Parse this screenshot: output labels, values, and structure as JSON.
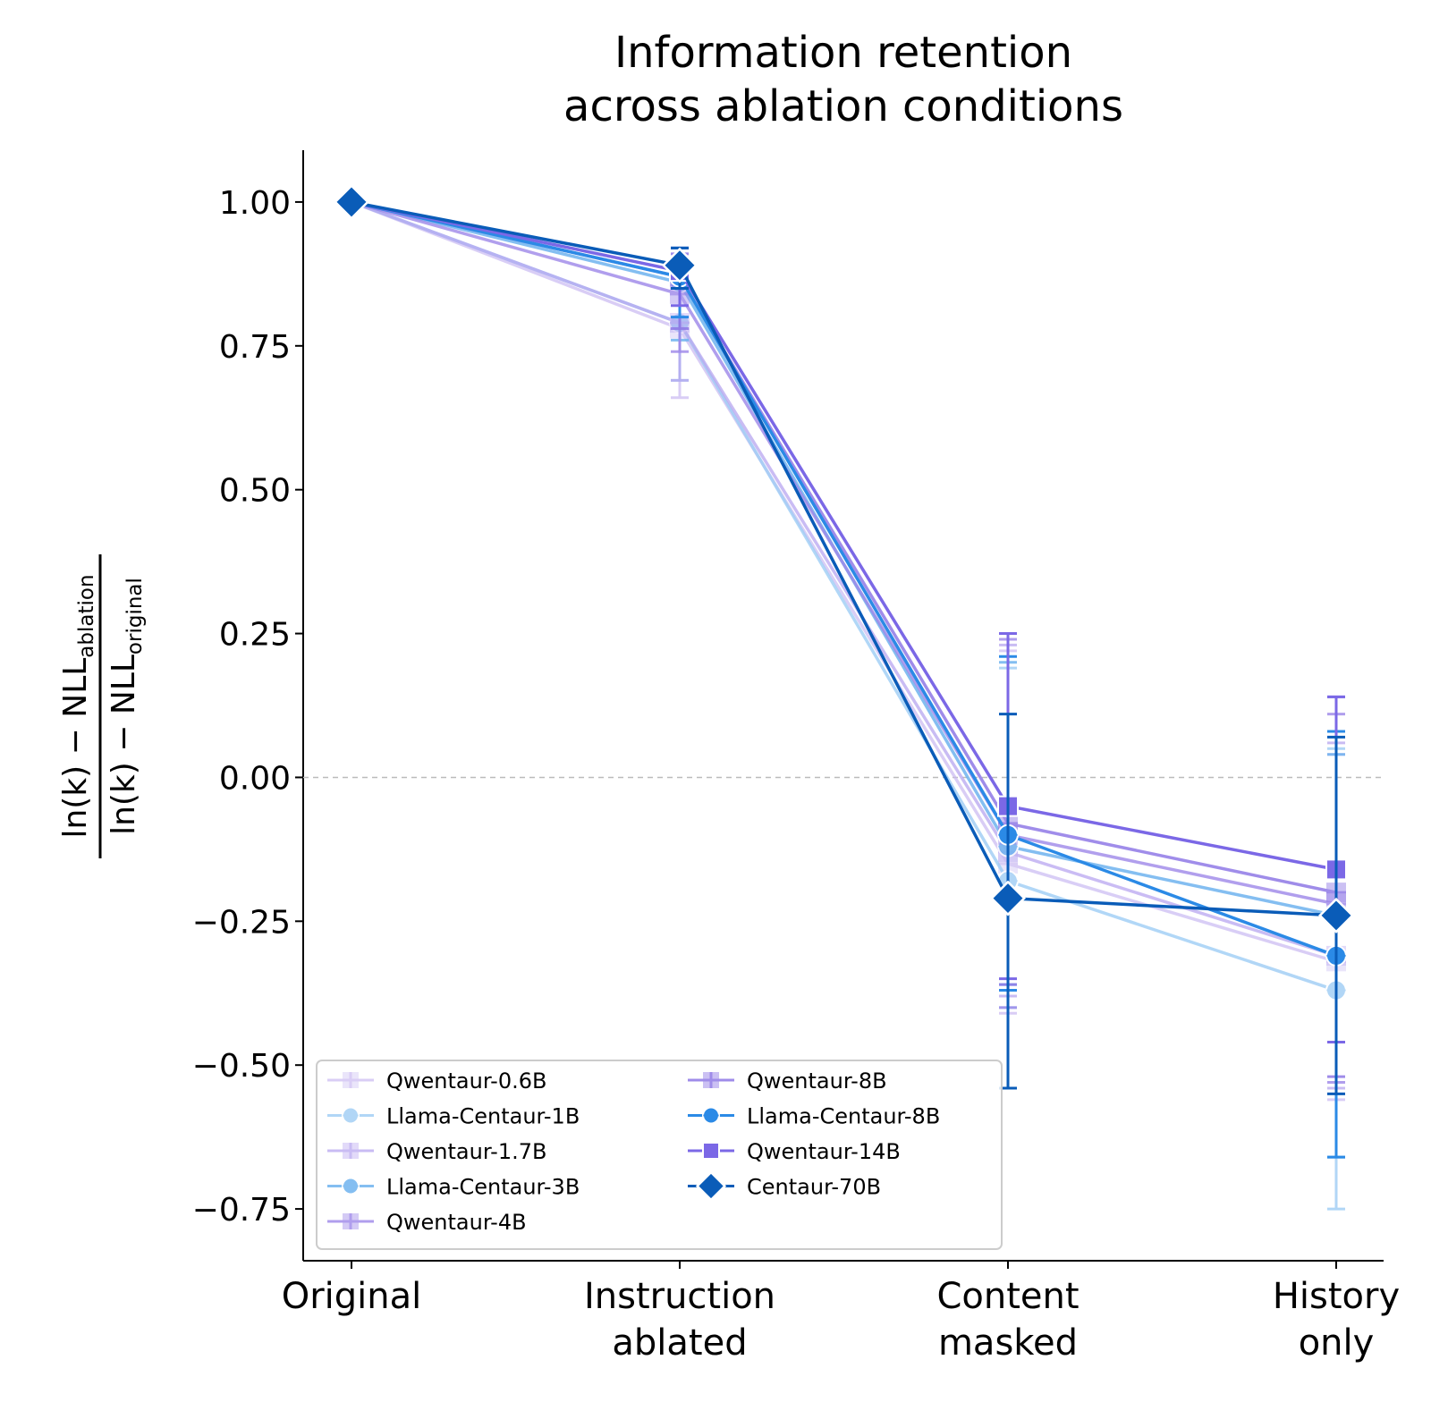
{
  "chart_data": {
    "type": "line",
    "title": [
      "Information retention",
      "across ablation conditions"
    ],
    "categories": [
      [
        "Original"
      ],
      [
        "Instruction",
        "ablated"
      ],
      [
        "Content",
        "masked"
      ],
      [
        "History",
        "only"
      ]
    ],
    "ylabel": {
      "numerator": {
        "text": "ln(k) − NLL",
        "sub": "ablation"
      },
      "denominator": {
        "text": "ln(k) − NLL",
        "sub": "original"
      }
    },
    "ylim": [
      -0.84,
      1.09
    ],
    "yticks": [
      1.0,
      0.75,
      0.5,
      0.25,
      0.0,
      -0.25,
      -0.5,
      -0.75
    ],
    "ytick_labels": [
      "1.00",
      "0.75",
      "0.50",
      "0.25",
      "0.00",
      "−0.25",
      "−0.50",
      "−0.75"
    ],
    "reference_line": {
      "y": 0.0,
      "style": "dashed",
      "color": "#bbbbbb"
    },
    "grid": false,
    "legend": {
      "placement": "lower-left",
      "columns": 2
    },
    "series": [
      {
        "name": "Qwentaur-0.6B",
        "color": "#c9b9f2",
        "marker": "plus",
        "alpha": 0.7,
        "values": [
          1.0,
          0.78,
          -0.15,
          -0.32
        ],
        "err_low": [
          0.0,
          0.66,
          -0.41,
          -0.56
        ],
        "err_high": [
          0.0,
          0.88,
          0.22,
          0.04
        ]
      },
      {
        "name": "Llama-Centaur-1B",
        "color": "#9ecdf5",
        "marker": "circle",
        "alpha": 0.8,
        "values": [
          1.0,
          0.79,
          -0.18,
          -0.37
        ],
        "err_low": [
          0.0,
          0.69,
          -0.4,
          -0.75
        ],
        "err_high": [
          0.0,
          0.89,
          0.19,
          0.05
        ]
      },
      {
        "name": "Qwentaur-1.7B",
        "color": "#b8a6f0",
        "marker": "plus",
        "alpha": 0.75,
        "values": [
          1.0,
          0.79,
          -0.13,
          -0.31
        ],
        "err_low": [
          0.0,
          0.69,
          -0.38,
          -0.54
        ],
        "err_high": [
          0.0,
          0.89,
          0.23,
          0.06
        ]
      },
      {
        "name": "Llama-Centaur-3B",
        "color": "#6fb3ef",
        "marker": "circle",
        "alpha": 0.85,
        "values": [
          1.0,
          0.86,
          -0.12,
          -0.24
        ],
        "err_low": [
          0.0,
          0.76,
          -0.36,
          -0.66
        ],
        "err_high": [
          0.0,
          0.9,
          0.2,
          0.04
        ]
      },
      {
        "name": "Qwentaur-4B",
        "color": "#9d87e9",
        "marker": "plus",
        "alpha": 0.8,
        "values": [
          1.0,
          0.84,
          -0.1,
          -0.22
        ],
        "err_low": [
          0.0,
          0.74,
          -0.4,
          -0.53
        ],
        "err_high": [
          0.0,
          0.9,
          0.24,
          0.11
        ]
      },
      {
        "name": "Qwentaur-8B",
        "color": "#8f79e6",
        "marker": "plus",
        "alpha": 0.85,
        "values": [
          1.0,
          0.87,
          -0.08,
          -0.2
        ],
        "err_low": [
          0.0,
          0.78,
          -0.36,
          -0.52
        ],
        "err_high": [
          0.0,
          0.91,
          0.25,
          0.14
        ]
      },
      {
        "name": "Llama-Centaur-8B",
        "color": "#2b8ae6",
        "marker": "circle",
        "alpha": 1.0,
        "values": [
          1.0,
          0.87,
          -0.1,
          -0.31
        ],
        "err_low": [
          0.0,
          0.8,
          -0.37,
          -0.66
        ],
        "err_high": [
          0.0,
          0.92,
          0.21,
          0.08
        ]
      },
      {
        "name": "Qwentaur-14B",
        "color": "#7b68e6",
        "marker": "square",
        "alpha": 1.0,
        "values": [
          1.0,
          0.88,
          -0.05,
          -0.16
        ],
        "err_low": [
          0.0,
          0.82,
          -0.35,
          -0.46
        ],
        "err_high": [
          0.0,
          0.92,
          0.25,
          0.14
        ]
      },
      {
        "name": "Centaur-70B",
        "color": "#0a5cb8",
        "marker": "diamond",
        "alpha": 1.0,
        "values": [
          1.0,
          0.89,
          -0.21,
          -0.24
        ],
        "err_low": [
          0.0,
          0.85,
          -0.54,
          -0.55
        ],
        "err_high": [
          0.0,
          0.92,
          0.11,
          0.07
        ]
      }
    ]
  }
}
